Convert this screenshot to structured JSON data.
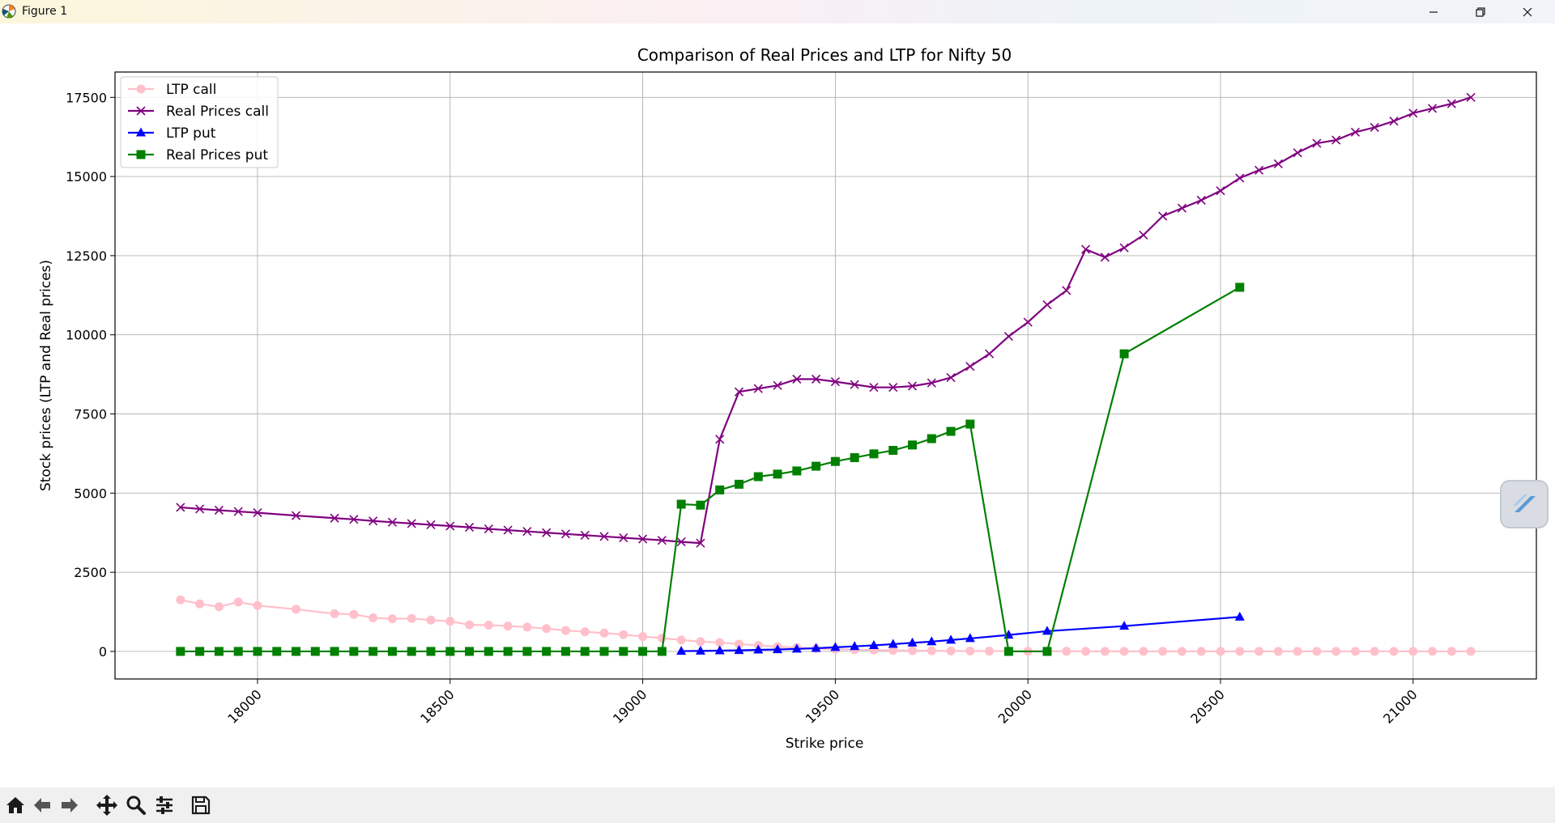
{
  "window": {
    "title": "Figure 1",
    "app_icon": "matplotlib-icon",
    "controls": [
      "minimize-icon",
      "restore-icon",
      "close-icon"
    ]
  },
  "toolbar": {
    "buttons": [
      {
        "name": "home-icon",
        "tooltip": "Reset original view"
      },
      {
        "name": "back-arrow-icon",
        "tooltip": "Back to previous view"
      },
      {
        "name": "forward-arrow-icon",
        "tooltip": "Forward to next view"
      },
      {
        "name": "pan-icon",
        "tooltip": "Pan axes"
      },
      {
        "name": "zoom-icon",
        "tooltip": "Zoom to rectangle"
      },
      {
        "name": "configure-subplots-icon",
        "tooltip": "Configure subplots"
      },
      {
        "name": "save-icon",
        "tooltip": "Save the figure"
      }
    ]
  },
  "side_widget": {
    "icon": "floating-assistant-icon"
  },
  "chart_data": {
    "type": "line",
    "title": "Comparison of Real Prices and LTP for Nifty 50",
    "xlabel": "Strike price",
    "ylabel": "Stock prices (LTP and Real prices)",
    "xlim": [
      17630,
      21320
    ],
    "ylim": [
      -870,
      18300
    ],
    "xticks": [
      18000,
      18500,
      19000,
      19500,
      20000,
      20500,
      21000
    ],
    "yticks": [
      0,
      2500,
      5000,
      7500,
      10000,
      12500,
      15000,
      17500
    ],
    "xtick_rotation": 45,
    "grid": true,
    "legend_position": "top-left",
    "series": [
      {
        "name": "LTP call",
        "color": "#ffc0cb",
        "marker": "circle",
        "x": [
          17800,
          17850,
          17900,
          17950,
          18000,
          18100,
          18200,
          18250,
          18300,
          18350,
          18400,
          18450,
          18500,
          18550,
          18600,
          18650,
          18700,
          18750,
          18800,
          18850,
          18900,
          18950,
          19000,
          19050,
          19100,
          19150,
          19200,
          19250,
          19300,
          19350,
          19400,
          19450,
          19500,
          19550,
          19600,
          19650,
          19700,
          19750,
          19800,
          19850,
          19900,
          19950,
          20000,
          20050,
          20100,
          20150,
          20200,
          20250,
          20300,
          20350,
          20400,
          20450,
          20500,
          20550,
          20600,
          20650,
          20700,
          20750,
          20800,
          20850,
          20900,
          20950,
          21000,
          21050,
          21100,
          21150
        ],
        "y": [
          1630,
          1500,
          1410,
          1560,
          1450,
          1330,
          1190,
          1170,
          1060,
          1030,
          1040,
          990,
          950,
          840,
          830,
          800,
          770,
          720,
          660,
          620,
          580,
          530,
          470,
          420,
          360,
          310,
          280,
          230,
          190,
          150,
          120,
          90,
          70,
          55,
          45,
          35,
          25,
          20,
          15,
          12,
          10,
          8,
          6,
          5,
          4,
          3,
          3,
          2,
          2,
          2,
          2,
          1,
          1,
          1,
          1,
          1,
          1,
          1,
          1,
          1,
          1,
          1,
          1,
          1,
          1,
          1
        ]
      },
      {
        "name": "Real Prices call",
        "color": "#800080",
        "marker": "x",
        "x": [
          17800,
          17850,
          17900,
          17950,
          18000,
          18100,
          18200,
          18250,
          18300,
          18350,
          18400,
          18450,
          18500,
          18550,
          18600,
          18650,
          18700,
          18750,
          18800,
          18850,
          18900,
          18950,
          19000,
          19050,
          19100,
          19150,
          19200,
          19250,
          19300,
          19350,
          19400,
          19450,
          19500,
          19550,
          19600,
          19650,
          19700,
          19750,
          19800,
          19850,
          19900,
          19950,
          20000,
          20050,
          20100,
          20150,
          20200,
          20250,
          20300,
          20350,
          20400,
          20450,
          20500,
          20550,
          20600,
          20650,
          20700,
          20750,
          20800,
          20850,
          20900,
          20950,
          21000,
          21050,
          21100,
          21150
        ],
        "y": [
          4550,
          4500,
          4460,
          4420,
          4380,
          4290,
          4210,
          4170,
          4120,
          4080,
          4040,
          4000,
          3960,
          3920,
          3870,
          3830,
          3790,
          3750,
          3710,
          3670,
          3630,
          3590,
          3550,
          3510,
          3460,
          3420,
          6700,
          8200,
          8300,
          8400,
          8600,
          8600,
          8520,
          8430,
          8340,
          8340,
          8380,
          8480,
          8650,
          9000,
          9400,
          9950,
          10400,
          10950,
          11400,
          12700,
          12450,
          12750,
          13150,
          13750,
          14000,
          14250,
          14550,
          14950,
          15200,
          15400,
          15750,
          16050,
          16150,
          16400,
          16550,
          16750,
          17000,
          17150,
          17300,
          17500
        ]
      },
      {
        "name": "LTP put",
        "color": "#0000ff",
        "marker": "triangle",
        "x": [
          19100,
          19150,
          19200,
          19250,
          19300,
          19350,
          19400,
          19450,
          19500,
          19550,
          19600,
          19650,
          19700,
          19750,
          19800,
          19850,
          19950,
          20050,
          20250,
          20550
        ],
        "y": [
          10,
          15,
          25,
          35,
          50,
          60,
          80,
          100,
          130,
          160,
          190,
          230,
          270,
          310,
          360,
          410,
          520,
          640,
          800,
          1090
        ]
      },
      {
        "name": "Real Prices put",
        "color": "#008000",
        "marker": "square",
        "x": [
          17800,
          17850,
          17900,
          17950,
          18000,
          18050,
          18100,
          18150,
          18200,
          18250,
          18300,
          18350,
          18400,
          18450,
          18500,
          18550,
          18600,
          18650,
          18700,
          18750,
          18800,
          18850,
          18900,
          18950,
          19000,
          19050,
          19100,
          19150,
          19200,
          19250,
          19300,
          19350,
          19400,
          19450,
          19500,
          19550,
          19600,
          19650,
          19700,
          19750,
          19800,
          19850,
          19950,
          20050,
          20250,
          20550
        ],
        "y": [
          0,
          0,
          0,
          0,
          0,
          0,
          0,
          0,
          0,
          0,
          0,
          0,
          0,
          0,
          0,
          0,
          0,
          0,
          0,
          0,
          0,
          0,
          0,
          0,
          0,
          0,
          4650,
          4620,
          5100,
          5280,
          5520,
          5600,
          5700,
          5850,
          6000,
          6120,
          6240,
          6350,
          6520,
          6720,
          6950,
          7180,
          0,
          0,
          9400,
          11500
        ]
      }
    ]
  }
}
